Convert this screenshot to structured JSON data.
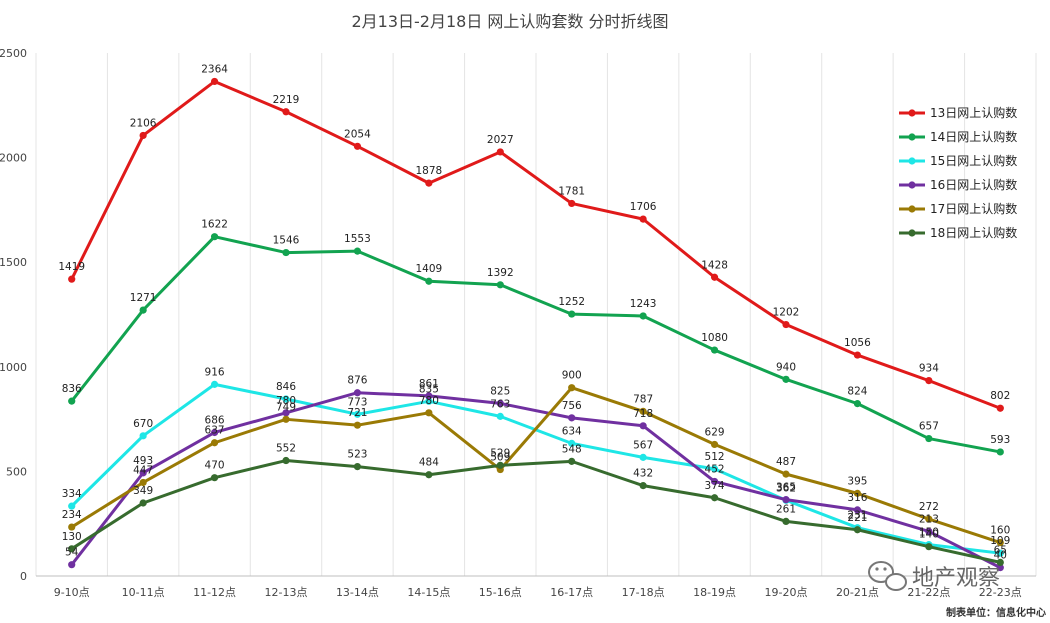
{
  "chart_data": {
    "type": "line",
    "title": "2月13日-2月18日 网上认购套数 分时折线图",
    "categories": [
      "9-10点",
      "10-11点",
      "11-12点",
      "12-13点",
      "13-14点",
      "14-15点",
      "15-16点",
      "16-17点",
      "17-18点",
      "18-19点",
      "19-20点",
      "20-21点",
      "21-22点",
      "22-23点"
    ],
    "ylim": [
      0,
      2500
    ],
    "yticks": [
      0,
      500,
      1000,
      1500,
      2000,
      2500
    ],
    "grid": "vertical",
    "legend_position": "right",
    "series": [
      {
        "name": "13日网上认购数",
        "color": "#e01a1a",
        "values": [
          1419,
          2106,
          2364,
          2219,
          2054,
          1878,
          2027,
          1781,
          1706,
          1428,
          1202,
          1056,
          934,
          802
        ]
      },
      {
        "name": "14日网上认购数",
        "color": "#12a350",
        "values": [
          836,
          1271,
          1622,
          1546,
          1553,
          1409,
          1392,
          1252,
          1243,
          1080,
          940,
          824,
          657,
          593
        ]
      },
      {
        "name": "15日网上认购数",
        "color": "#1ee6e6",
        "values": [
          334,
          670,
          916,
          846,
          773,
          835,
          763,
          634,
          567,
          512,
          362,
          231,
          150,
          109
        ]
      },
      {
        "name": "16日网上认购数",
        "color": "#7030a0",
        "values": [
          54,
          493,
          686,
          780,
          876,
          861,
          825,
          756,
          718,
          452,
          365,
          316,
          213,
          40
        ]
      },
      {
        "name": "17日网上认购数",
        "color": "#9a7a05",
        "values": [
          234,
          447,
          637,
          749,
          721,
          780,
          509,
          900,
          787,
          629,
          487,
          395,
          272,
          160
        ]
      },
      {
        "name": "18日网上认购数",
        "color": "#376b2e",
        "values": [
          130,
          349,
          470,
          552,
          523,
          484,
          529,
          548,
          432,
          374,
          261,
          221,
          140,
          65
        ]
      }
    ]
  },
  "watermark": {
    "text": "地产观察",
    "icon": "wechat-icon"
  },
  "credit": "制表单位：信息化中心"
}
